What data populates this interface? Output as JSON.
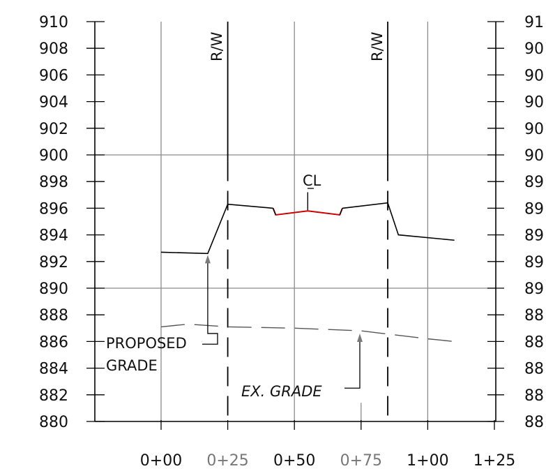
{
  "elevation_labels": [
    "910",
    "908",
    "906",
    "904",
    "902",
    "900",
    "898",
    "896",
    "894",
    "892",
    "890",
    "888",
    "886",
    "884",
    "882",
    "880"
  ],
  "right_elevation_labels": [
    "91",
    "90",
    "90",
    "90",
    "90",
    "90",
    "89",
    "89",
    "89",
    "89",
    "89",
    "88",
    "88",
    "88",
    "88",
    "88"
  ],
  "station_labels": [
    "0+00",
    "0+25",
    "0+50",
    "0+75",
    "1+00",
    "1+25"
  ],
  "row_label": "R/W",
  "centerline_label": "CL",
  "proposed_label_line1": "PROPOSED",
  "proposed_label_line2": "GRADE",
  "existing_label": "EX. GRADE",
  "colors": {
    "grid_major": "#8a8a8a",
    "frame": "#000000",
    "proposed_grade": "#000000",
    "finished_road": "#cc0000",
    "existing_grade": "#555555",
    "arrow": "#7a7a7a",
    "station_dark": "#111111",
    "station_light": "#777777"
  },
  "chart_data": {
    "type": "line",
    "ylim": [
      880,
      910
    ],
    "xlim": [
      -25,
      125
    ],
    "series": [
      {
        "values_x": [
          0,
          17.5,
          25,
          42,
          43,
          55,
          67,
          68,
          85,
          89,
          110
        ],
        "values_y": [
          892.7,
          892.6,
          896.3,
          896.0,
          895.5,
          895.8,
          895.5,
          896.0,
          896.4,
          894.0,
          893.6
        ]
      },
      {
        "values_x": [
          0,
          10,
          25,
          50,
          75,
          100,
          110
        ],
        "values_y": [
          887.1,
          887.3,
          887.1,
          887.0,
          886.8,
          886.2,
          886.0
        ]
      }
    ],
    "row_stations": [
      25,
      85
    ],
    "centerline_station": 55
  }
}
